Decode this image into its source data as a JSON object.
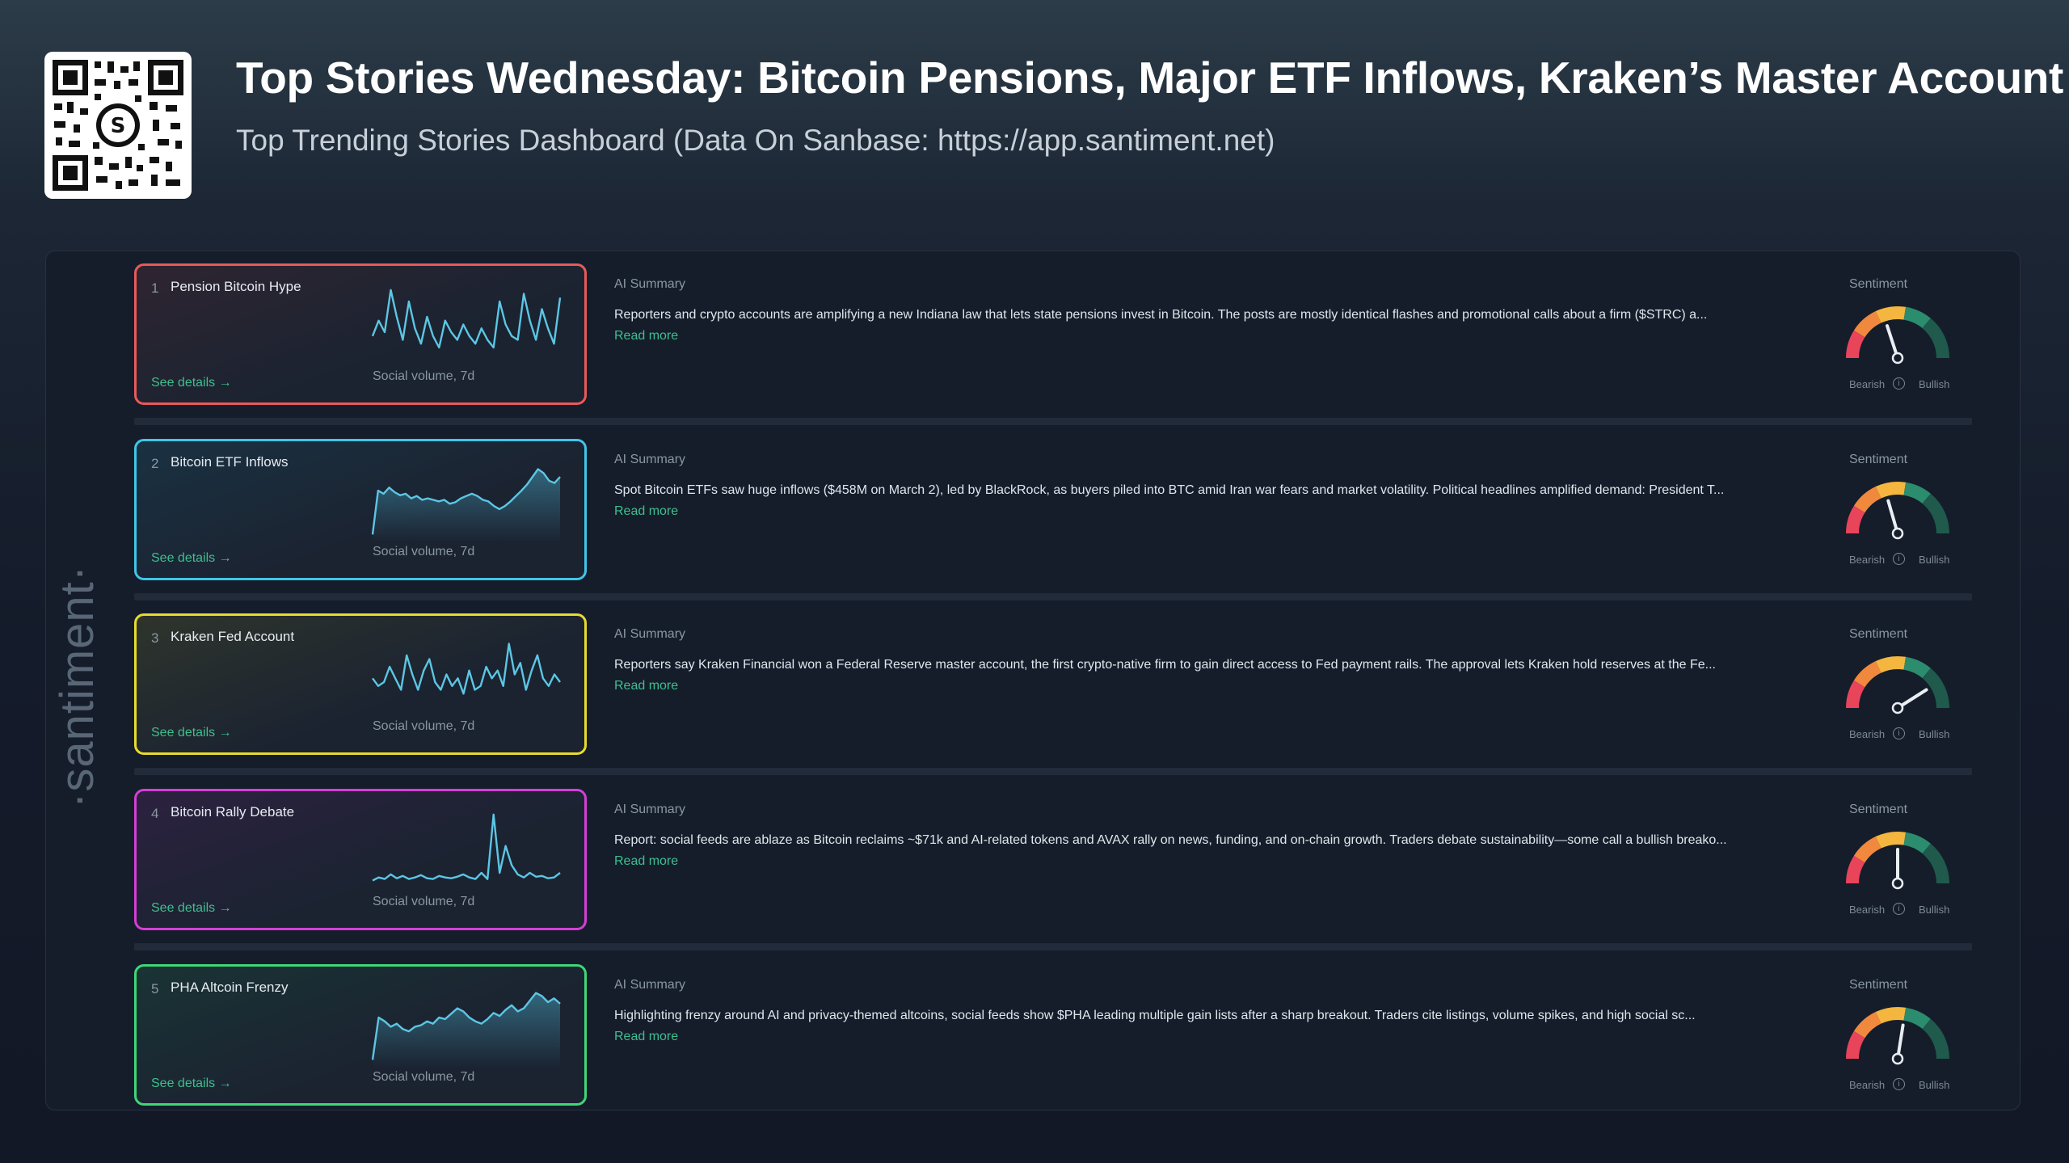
{
  "header": {
    "title": "Top Stories Wednesday: Bitcoin Pensions, Major ETF Inflows, Kraken’s Master Account",
    "subtitle": "Top Trending Stories Dashboard (Data On Sanbase: https://app.santiment.net)",
    "qr_icon": "qr-code-icon"
  },
  "watermark": "·santiment·",
  "labels": {
    "ai_summary": "AI Summary",
    "sentiment": "Sentiment",
    "social_volume": "Social volume, 7d",
    "see_details": "See details →",
    "read_more": "Read more",
    "bearish": "Bearish",
    "bullish": "Bullish",
    "info_icon": "info-icon"
  },
  "stories": [
    {
      "rank": "1",
      "name": "Pension Bitcoin Hype",
      "summary": "Reporters and crypto accounts are amplifying a new Indiana law that lets state pensions invest in Bitcoin. The posts are mostly identical flashes and promotional calls about a firm ($STRC) a...",
      "border_color": "#e85a5a",
      "spark_type": "line",
      "sentiment_fraction": 0.4,
      "spark": [
        0.35,
        0.55,
        0.4,
        0.95,
        0.6,
        0.3,
        0.8,
        0.45,
        0.25,
        0.6,
        0.35,
        0.2,
        0.55,
        0.4,
        0.3,
        0.5,
        0.35,
        0.25,
        0.45,
        0.3,
        0.2,
        0.8,
        0.5,
        0.35,
        0.3,
        0.9,
        0.55,
        0.3,
        0.7,
        0.45,
        0.25,
        0.85
      ]
    },
    {
      "rank": "2",
      "name": "Bitcoin ETF Inflows",
      "summary": "Spot Bitcoin ETFs saw huge inflows ($458M on March 2), led by BlackRock, as buyers piled into BTC amid Iran war fears and market volatility. Political headlines amplified demand: President T...",
      "border_color": "#3fc6e8",
      "spark_type": "area",
      "sentiment_fraction": 0.41,
      "spark": [
        0.05,
        0.62,
        0.58,
        0.66,
        0.6,
        0.56,
        0.58,
        0.52,
        0.55,
        0.5,
        0.52,
        0.5,
        0.48,
        0.5,
        0.45,
        0.47,
        0.52,
        0.55,
        0.58,
        0.55,
        0.5,
        0.48,
        0.42,
        0.38,
        0.42,
        0.48,
        0.55,
        0.62,
        0.7,
        0.8,
        0.9,
        0.85,
        0.75,
        0.72,
        0.8
      ]
    },
    {
      "rank": "3",
      "name": "Kraken Fed Account",
      "summary": "Reporters say Kraken Financial won a Federal Reserve master account, the first crypto-native firm to gain direct access to Fed payment rails. The approval lets Kraken hold reserves at the Fe...",
      "border_color": "#e6dc2e",
      "spark_type": "line",
      "sentiment_fraction": 0.82,
      "spark": [
        0.45,
        0.35,
        0.4,
        0.6,
        0.45,
        0.3,
        0.75,
        0.5,
        0.3,
        0.55,
        0.7,
        0.4,
        0.3,
        0.5,
        0.35,
        0.45,
        0.25,
        0.55,
        0.3,
        0.35,
        0.6,
        0.45,
        0.55,
        0.35,
        0.9,
        0.5,
        0.65,
        0.3,
        0.55,
        0.75,
        0.45,
        0.35,
        0.5,
        0.4
      ]
    },
    {
      "rank": "4",
      "name": "Bitcoin Rally Debate",
      "summary": "Report: social feeds are ablaze as Bitcoin reclaims ~$71k and AI-related tokens and AVAX rally on news, funding, and on-chain growth. Traders debate sustainability—some call a bullish breako...",
      "border_color": "#d43fd6",
      "spark_type": "line",
      "sentiment_fraction": 0.5,
      "spark": [
        0.1,
        0.14,
        0.12,
        0.18,
        0.13,
        0.16,
        0.12,
        0.14,
        0.17,
        0.13,
        0.12,
        0.16,
        0.14,
        0.13,
        0.15,
        0.18,
        0.14,
        0.12,
        0.2,
        0.12,
        0.96,
        0.2,
        0.55,
        0.3,
        0.18,
        0.14,
        0.2,
        0.15,
        0.16,
        0.13,
        0.14,
        0.2
      ]
    },
    {
      "rank": "5",
      "name": "PHA Altcoin Frenzy",
      "summary": "Highlighting frenzy around AI and privacy-themed altcoins, social feeds show $PHA leading multiple gain lists after a sharp breakout. Traders cite listings, volume spikes, and high social sc...",
      "border_color": "#3fd678",
      "spark_type": "area",
      "sentiment_fraction": 0.55,
      "spark": [
        0.05,
        0.6,
        0.55,
        0.48,
        0.52,
        0.45,
        0.42,
        0.48,
        0.5,
        0.55,
        0.52,
        0.6,
        0.58,
        0.65,
        0.72,
        0.68,
        0.6,
        0.55,
        0.52,
        0.58,
        0.66,
        0.62,
        0.7,
        0.76,
        0.68,
        0.72,
        0.82,
        0.92,
        0.88,
        0.8,
        0.85,
        0.78
      ]
    }
  ],
  "colors": {
    "accent_green": "#3fbf8f",
    "gauge_bearish": "#e8445a",
    "gauge_neutral": "#f4b63e",
    "gauge_bullish": "#1f6a55"
  }
}
